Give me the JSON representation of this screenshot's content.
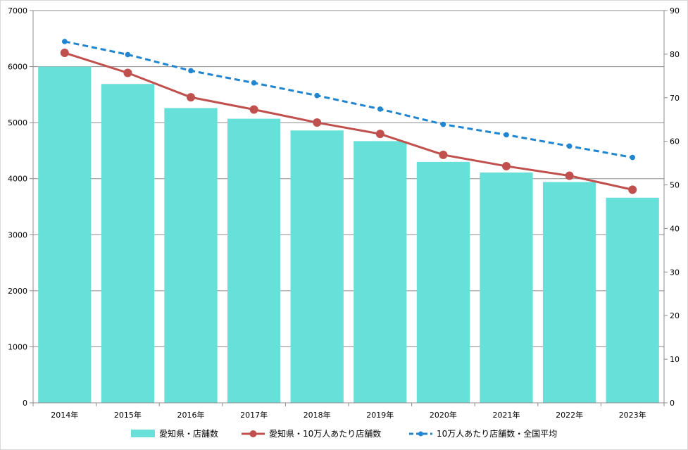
{
  "chart_data": {
    "type": "bar+line",
    "categories": [
      "2014年",
      "2015年",
      "2016年",
      "2017年",
      "2018年",
      "2019年",
      "2020年",
      "2021年",
      "2022年",
      "2023年"
    ],
    "series": [
      {
        "name": "愛知県・店舗数",
        "type": "bar",
        "axis": "left",
        "color": "#66e0d8",
        "values": [
          6000,
          5690,
          5260,
          5070,
          4860,
          4670,
          4300,
          4110,
          3940,
          3660
        ]
      },
      {
        "name": "愛知県・10万人あたり店舗数",
        "type": "line",
        "axis": "right",
        "color": "#c0504d",
        "values": [
          80.3,
          75.7,
          70.1,
          67.3,
          64.3,
          61.7,
          56.9,
          54.3,
          52.1,
          48.9
        ]
      },
      {
        "name": "10万人あたり店舗数・全国平均",
        "type": "line-dashed",
        "axis": "right",
        "color": "#1f85d0",
        "values": [
          82.9,
          79.9,
          76.2,
          73.4,
          70.5,
          67.4,
          63.9,
          61.5,
          58.9,
          56.3
        ]
      }
    ],
    "y_left": {
      "min": 0,
      "max": 7000,
      "ticks": [
        "0",
        "1000",
        "2000",
        "3000",
        "4000",
        "5000",
        "6000",
        "7000"
      ]
    },
    "y_right": {
      "min": 0,
      "max": 90,
      "ticks": [
        "0",
        "10",
        "20",
        "30",
        "40",
        "50",
        "60",
        "70",
        "80",
        "90"
      ]
    },
    "grid": true,
    "legend_position": "bottom"
  }
}
